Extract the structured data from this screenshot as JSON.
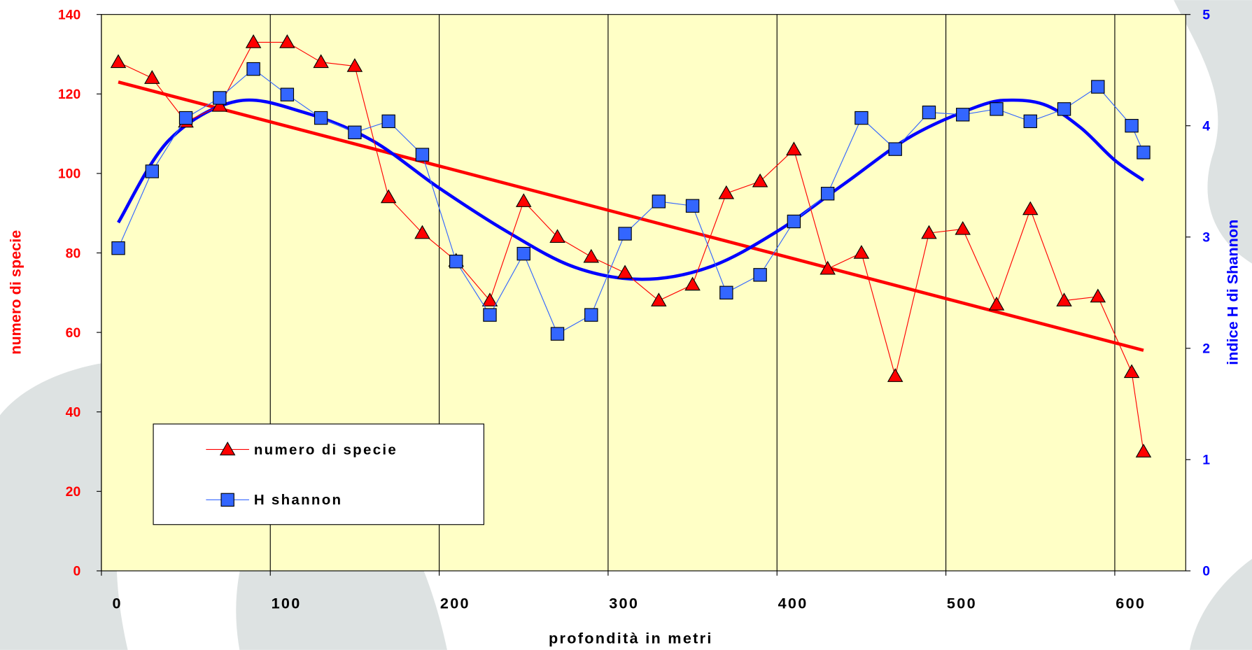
{
  "chart_data": {
    "type": "line",
    "x_label": "profondità in metri",
    "y_label": "numero di specie",
    "y2_label": "indice H di Shannon",
    "x": [
      10,
      30,
      50,
      70,
      90,
      110,
      130,
      150,
      170,
      190,
      210,
      230,
      250,
      270,
      290,
      310,
      330,
      350,
      370,
      390,
      410,
      430,
      450,
      470,
      490,
      510,
      530,
      550,
      570,
      590,
      610,
      617
    ],
    "series": [
      {
        "name": "numero di specie",
        "color": "#ff0000",
        "marker": "triangle",
        "values": [
          128,
          124,
          113,
          117,
          133,
          133,
          128,
          127,
          94,
          85,
          78,
          68,
          93,
          84,
          79,
          75,
          68,
          72,
          95,
          98,
          106,
          76,
          80,
          49,
          85,
          86,
          67,
          91,
          68,
          69,
          50,
          30
        ]
      },
      {
        "name": "H shannon",
        "color": "#3366ff",
        "marker": "square",
        "axis": "y2",
        "values": [
          2.9,
          3.59,
          4.07,
          4.25,
          4.51,
          4.28,
          4.07,
          3.94,
          4.04,
          3.74,
          2.78,
          2.3,
          2.85,
          2.13,
          2.3,
          3.03,
          3.32,
          3.28,
          2.5,
          2.66,
          3.14,
          3.39,
          4.07,
          3.79,
          4.12,
          4.1,
          4.15,
          4.04,
          4.15,
          4.35,
          4.0,
          3.76
        ]
      }
    ],
    "trendlines": [
      {
        "color": "#ff0000",
        "x": [
          10,
          617
        ],
        "values": [
          123,
          55.5
        ]
      },
      {
        "color": "#0000ff",
        "axis": "y2",
        "x": [
          10,
          40,
          80,
          120,
          160,
          200,
          240,
          280,
          320,
          360,
          400,
          440,
          480,
          520,
          540,
          560,
          580,
          600,
          617
        ],
        "values": [
          3.13,
          3.87,
          4.22,
          4.12,
          3.87,
          3.44,
          3.05,
          2.73,
          2.62,
          2.73,
          3.05,
          3.48,
          3.91,
          4.18,
          4.23,
          4.18,
          3.98,
          3.69,
          3.51
        ]
      }
    ],
    "xlim": [
      0,
      642
    ],
    "xticks": [
      0,
      100,
      200,
      300,
      400,
      500,
      600
    ],
    "ylim": [
      0,
      140
    ],
    "yticks": [
      0,
      20,
      40,
      60,
      80,
      100,
      120,
      140
    ],
    "y2lim": [
      0,
      5
    ],
    "y2ticks": [
      0,
      1,
      2,
      3,
      4,
      5
    ],
    "grid": true,
    "legend": "lower left",
    "plot_background": "#ffffc6"
  }
}
